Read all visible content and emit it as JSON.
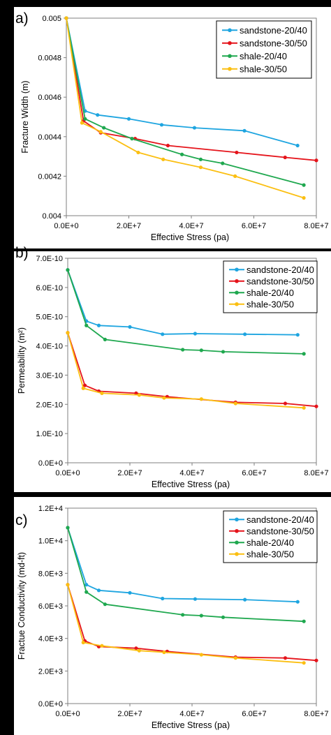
{
  "chart_data": [
    {
      "type": "line",
      "panel_label": "a)",
      "xlabel": "Effective Stress (pa)",
      "ylabel": "Fracture Width (m)",
      "xlim": [
        0,
        80000000
      ],
      "ylim": [
        0.004,
        0.005
      ],
      "xticks": [
        0,
        20000000,
        40000000,
        60000000,
        80000000
      ],
      "xtick_labels": [
        "0.0E+0",
        "2.0E+7",
        "4.0E+7",
        "6.0E+7",
        "8.0E+7"
      ],
      "yticks": [
        0.004,
        0.0042,
        0.0044,
        0.0046,
        0.0048,
        0.005
      ],
      "ytick_labels": [
        "0.004",
        "0.0042",
        "0.0044",
        "0.0046",
        "0.0048",
        "0.005"
      ],
      "legend_position": "top-right",
      "grid": false,
      "series": [
        {
          "name": "sandstone-20/40",
          "color": "#1ea5e0",
          "x": [
            0,
            6000000,
            10000000,
            20000000,
            30500000,
            41000000,
            57000000,
            74000000
          ],
          "y": [
            0.005,
            0.00453,
            0.00451,
            0.00449,
            0.00446,
            0.004445,
            0.00443,
            0.004355
          ]
        },
        {
          "name": "sandstone-30/50",
          "color": "#e5141b",
          "x": [
            0,
            5500000,
            11000000,
            22000000,
            32500000,
            54500000,
            70000000,
            80000000
          ],
          "y": [
            0.005,
            0.00448,
            0.00442,
            0.00439,
            0.004355,
            0.00432,
            0.004295,
            0.00428
          ]
        },
        {
          "name": "shale-20/40",
          "color": "#1fa84f",
          "x": [
            0,
            6000000,
            12000000,
            21000000,
            37000000,
            43000000,
            50000000,
            76000000
          ],
          "y": [
            0.005,
            0.00449,
            0.004445,
            0.00439,
            0.00431,
            0.004285,
            0.004265,
            0.004155
          ]
        },
        {
          "name": "shale-30/50",
          "color": "#fbbf12",
          "x": [
            0,
            5000000,
            11000000,
            23000000,
            31000000,
            43000000,
            54000000,
            76000000
          ],
          "y": [
            0.005,
            0.00447,
            0.004425,
            0.00432,
            0.004285,
            0.004245,
            0.0042,
            0.00409
          ]
        }
      ]
    },
    {
      "type": "line",
      "panel_label": "b)",
      "xlabel": "Effective Stress (pa)",
      "ylabel": "Permeability (m²)",
      "xlim": [
        0,
        80000000
      ],
      "ylim": [
        0,
        7e-10
      ],
      "xticks": [
        0,
        20000000,
        40000000,
        60000000,
        80000000
      ],
      "xtick_labels": [
        "0.0E+0",
        "2.0E+7",
        "4.0E+7",
        "6.0E+7",
        "8.0E+7"
      ],
      "yticks": [
        0,
        1e-10,
        2e-10,
        3e-10,
        4e-10,
        5e-10,
        6e-10,
        7e-10
      ],
      "ytick_labels": [
        "0.0E+0",
        "1.0E-10",
        "2.0E-10",
        "3.0E-10",
        "4.0E-10",
        "5.0E-10",
        "6.0E-10",
        "7.0E-10"
      ],
      "legend_position": "top-right",
      "grid": false,
      "series": [
        {
          "name": "sandstone-20/40",
          "color": "#1ea5e0",
          "x": [
            0,
            6000000,
            10000000,
            20000000,
            30500000,
            41000000,
            57000000,
            74000000
          ],
          "y": [
            6.6e-10,
            4.85e-10,
            4.7e-10,
            4.65e-10,
            4.4e-10,
            4.42e-10,
            4.4e-10,
            4.38e-10
          ]
        },
        {
          "name": "sandstone-30/50",
          "color": "#e5141b",
          "x": [
            0,
            5500000,
            10000000,
            22000000,
            32000000,
            54000000,
            70000000,
            80000000
          ],
          "y": [
            4.45e-10,
            2.65e-10,
            2.45e-10,
            2.38e-10,
            2.26e-10,
            2.07e-10,
            2.03e-10,
            1.93e-10
          ]
        },
        {
          "name": "shale-20/40",
          "color": "#1fa84f",
          "x": [
            0,
            6000000,
            12000000,
            37000000,
            43000000,
            50000000,
            76000000
          ],
          "y": [
            6.6e-10,
            4.7e-10,
            4.22e-10,
            3.87e-10,
            3.85e-10,
            3.8e-10,
            3.73e-10
          ]
        },
        {
          "name": "shale-30/50",
          "color": "#fbbf12",
          "x": [
            0,
            5000000,
            11000000,
            23000000,
            31000000,
            43000000,
            54000000,
            76000000
          ],
          "y": [
            4.45e-10,
            2.55e-10,
            2.38e-10,
            2.32e-10,
            2.22e-10,
            2.18e-10,
            2.03e-10,
            1.88e-10
          ]
        }
      ]
    },
    {
      "type": "line",
      "panel_label": "c)",
      "xlabel": "Effective Stress (pa)",
      "ylabel": "Fractue Conductivity (md-ft)",
      "xlim": [
        0,
        80000000
      ],
      "ylim": [
        0,
        12000
      ],
      "xticks": [
        0,
        20000000,
        40000000,
        60000000,
        80000000
      ],
      "xtick_labels": [
        "0.0E+0",
        "2.0E+7",
        "4.0E+7",
        "6.0E+7",
        "8.0E+7"
      ],
      "yticks": [
        0,
        2000,
        4000,
        6000,
        8000,
        10000,
        12000
      ],
      "ytick_labels": [
        "0.0E+0",
        "2.0E+3",
        "4.0E+3",
        "6.0E+3",
        "8.0E+3",
        "1.0E+4",
        "1.2E+4"
      ],
      "legend_position": "top-right",
      "grid": false,
      "series": [
        {
          "name": "sandstone-20/40",
          "color": "#1ea5e0",
          "x": [
            0,
            6000000,
            10000000,
            20000000,
            30500000,
            41000000,
            57000000,
            74000000
          ],
          "y": [
            10800,
            7300,
            6950,
            6800,
            6450,
            6420,
            6380,
            6250
          ]
        },
        {
          "name": "sandstone-30/50",
          "color": "#e5141b",
          "x": [
            0,
            5500000,
            10000000,
            22000000,
            32000000,
            54000000,
            70000000,
            80000000
          ],
          "y": [
            7300,
            3850,
            3500,
            3400,
            3200,
            2850,
            2800,
            2650
          ]
        },
        {
          "name": "shale-20/40",
          "color": "#1fa84f",
          "x": [
            0,
            6000000,
            12000000,
            37000000,
            43000000,
            50000000,
            76000000
          ],
          "y": [
            10800,
            6850,
            6100,
            5450,
            5400,
            5300,
            5050
          ]
        },
        {
          "name": "shale-30/50",
          "color": "#fbbf12",
          "x": [
            0,
            5000000,
            11000000,
            23000000,
            31000000,
            43000000,
            54000000,
            76000000
          ],
          "y": [
            7300,
            3750,
            3550,
            3250,
            3150,
            3000,
            2800,
            2500
          ]
        }
      ]
    }
  ]
}
